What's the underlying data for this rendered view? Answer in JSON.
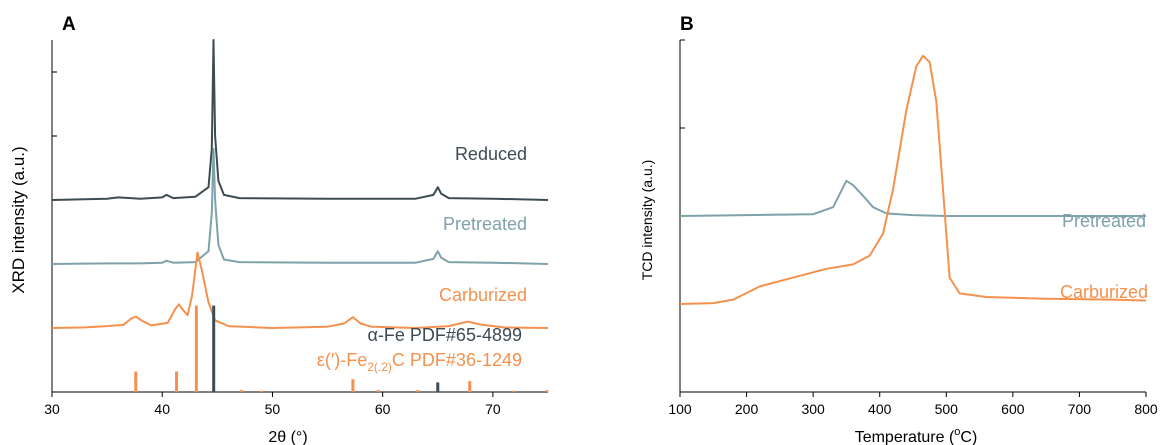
{
  "colors": {
    "reduced": "#3d4b53",
    "pretreated": "#7fa2aa",
    "carburized": "#f5914e",
    "axis": "#000000"
  },
  "chart_data": [
    {
      "type": "line",
      "panel_label": "A",
      "xlabel": "2θ (°)",
      "ylabel": "XRD intensity (a.u.)",
      "xlim": [
        30,
        75
      ],
      "ylim": [
        0,
        5.5
      ],
      "xticks": [
        "30",
        "40",
        "50",
        "60",
        "70"
      ],
      "yticks": [
        0,
        1,
        2,
        3,
        4,
        5
      ],
      "grid": false,
      "series": [
        {
          "name": "Reduced",
          "color": "reduced",
          "baseline": 3.0,
          "points": [
            [
              30,
              3.0
            ],
            [
              35,
              3.02
            ],
            [
              36,
              3.04
            ],
            [
              38,
              3.02
            ],
            [
              40,
              3.04
            ],
            [
              40.4,
              3.08
            ],
            [
              41,
              3.03
            ],
            [
              43,
              3.05
            ],
            [
              44.2,
              3.2
            ],
            [
              44.5,
              3.8
            ],
            [
              44.65,
              5.5
            ],
            [
              44.8,
              4.0
            ],
            [
              45.1,
              3.3
            ],
            [
              45.6,
              3.08
            ],
            [
              47,
              3.03
            ],
            [
              55,
              3.02
            ],
            [
              63,
              3.02
            ],
            [
              64.6,
              3.08
            ],
            [
              65,
              3.2
            ],
            [
              65.3,
              3.1
            ],
            [
              66,
              3.03
            ],
            [
              70,
              3.02
            ],
            [
              75,
              3.0
            ]
          ]
        },
        {
          "name": "Pretreated",
          "color": "pretreated",
          "baseline": 2.0,
          "points": [
            [
              30,
              2.0
            ],
            [
              35,
              2.01
            ],
            [
              38,
              2.01
            ],
            [
              40,
              2.02
            ],
            [
              40.4,
              2.05
            ],
            [
              41,
              2.02
            ],
            [
              43,
              2.03
            ],
            [
              44.2,
              2.2
            ],
            [
              44.5,
              2.8
            ],
            [
              44.65,
              3.8
            ],
            [
              44.8,
              3.0
            ],
            [
              45.1,
              2.3
            ],
            [
              45.6,
              2.07
            ],
            [
              47,
              2.03
            ],
            [
              55,
              2.02
            ],
            [
              63,
              2.02
            ],
            [
              64.6,
              2.08
            ],
            [
              65,
              2.2
            ],
            [
              65.3,
              2.1
            ],
            [
              66,
              2.03
            ],
            [
              70,
              2.02
            ],
            [
              75,
              2.0
            ]
          ]
        },
        {
          "name": "Carburized",
          "color": "carburized",
          "baseline": 1.0,
          "points": [
            [
              30,
              1.0
            ],
            [
              33,
              1.01
            ],
            [
              35,
              1.03
            ],
            [
              36.5,
              1.05
            ],
            [
              37.2,
              1.15
            ],
            [
              37.6,
              1.18
            ],
            [
              38.1,
              1.12
            ],
            [
              39,
              1.04
            ],
            [
              40.5,
              1.08
            ],
            [
              41.2,
              1.3
            ],
            [
              41.5,
              1.37
            ],
            [
              41.8,
              1.3
            ],
            [
              42.3,
              1.2
            ],
            [
              42.7,
              1.5
            ],
            [
              43.2,
              2.18
            ],
            [
              43.6,
              1.9
            ],
            [
              44.2,
              1.4
            ],
            [
              44.8,
              1.12
            ],
            [
              46,
              1.03
            ],
            [
              50,
              1.0
            ],
            [
              55,
              1.02
            ],
            [
              56.5,
              1.07
            ],
            [
              57.3,
              1.17
            ],
            [
              58,
              1.07
            ],
            [
              59,
              1.02
            ],
            [
              63,
              1.0
            ],
            [
              66,
              1.03
            ],
            [
              67.7,
              1.1
            ],
            [
              69,
              1.05
            ],
            [
              71,
              1.01
            ],
            [
              75,
              1.0
            ]
          ]
        }
      ],
      "reference_patterns": [
        {
          "name": "α-Fe PDF#65-4899",
          "color": "reduced",
          "peaks": [
            [
              44.67,
              1.35
            ],
            [
              65.0,
              0.15
            ]
          ]
        },
        {
          "name": "ε(′)-Fe2(.2)C PDF#36-1249",
          "color": "carburized",
          "peaks": [
            [
              37.6,
              0.32
            ],
            [
              41.3,
              0.32
            ],
            [
              43.1,
              1.35
            ],
            [
              57.3,
              0.2
            ],
            [
              67.9,
              0.17
            ],
            [
              47.2,
              0.03
            ],
            [
              49.0,
              0.02
            ],
            [
              59.6,
              0.03
            ],
            [
              63.2,
              0.03
            ],
            [
              71.9,
              0.02
            ],
            [
              74.9,
              0.03
            ]
          ]
        }
      ],
      "labels": {
        "reduced": "Reduced",
        "pretreated": "Pretreated",
        "carburized": "Carburized",
        "ref1": "α-Fe PDF#65-4899",
        "ref2_pre": "ε(′)-Fe",
        "ref2_sub": "2(.2)",
        "ref2_post": "C PDF#36-1249"
      }
    },
    {
      "type": "line",
      "panel_label": "B",
      "xlabel_main": "Temperature (",
      "xlabel_sup": "o",
      "xlabel_end": "C)",
      "ylabel": "TCD intensity (a.u.)",
      "xlim": [
        100,
        800
      ],
      "ylim": [
        0,
        4
      ],
      "xticks": [
        "100",
        "200",
        "300",
        "400",
        "500",
        "600",
        "700",
        "800"
      ],
      "yticks": [
        0,
        1,
        2,
        3,
        4
      ],
      "grid": false,
      "series": [
        {
          "name": "Pretreated",
          "color": "pretreated",
          "points": [
            [
              100,
              2.0
            ],
            [
              200,
              2.01
            ],
            [
              300,
              2.02
            ],
            [
              330,
              2.1
            ],
            [
              350,
              2.4
            ],
            [
              360,
              2.35
            ],
            [
              375,
              2.23
            ],
            [
              390,
              2.1
            ],
            [
              410,
              2.03
            ],
            [
              450,
              2.01
            ],
            [
              500,
              2.0
            ],
            [
              600,
              2.0
            ],
            [
              700,
              2.0
            ],
            [
              800,
              2.0
            ]
          ]
        },
        {
          "name": "Carburized",
          "color": "carburized",
          "points": [
            [
              100,
              1.0
            ],
            [
              150,
              1.01
            ],
            [
              180,
              1.05
            ],
            [
              220,
              1.2
            ],
            [
              280,
              1.32
            ],
            [
              320,
              1.4
            ],
            [
              360,
              1.45
            ],
            [
              385,
              1.55
            ],
            [
              405,
              1.8
            ],
            [
              420,
              2.3
            ],
            [
              440,
              3.2
            ],
            [
              455,
              3.7
            ],
            [
              465,
              3.82
            ],
            [
              475,
              3.75
            ],
            [
              485,
              3.3
            ],
            [
              495,
              2.3
            ],
            [
              505,
              1.3
            ],
            [
              520,
              1.12
            ],
            [
              560,
              1.08
            ],
            [
              650,
              1.06
            ],
            [
              750,
              1.05
            ],
            [
              800,
              1.04
            ]
          ]
        }
      ],
      "labels": {
        "pretreated": "Pretreated",
        "carburized": "Carburized"
      }
    }
  ]
}
